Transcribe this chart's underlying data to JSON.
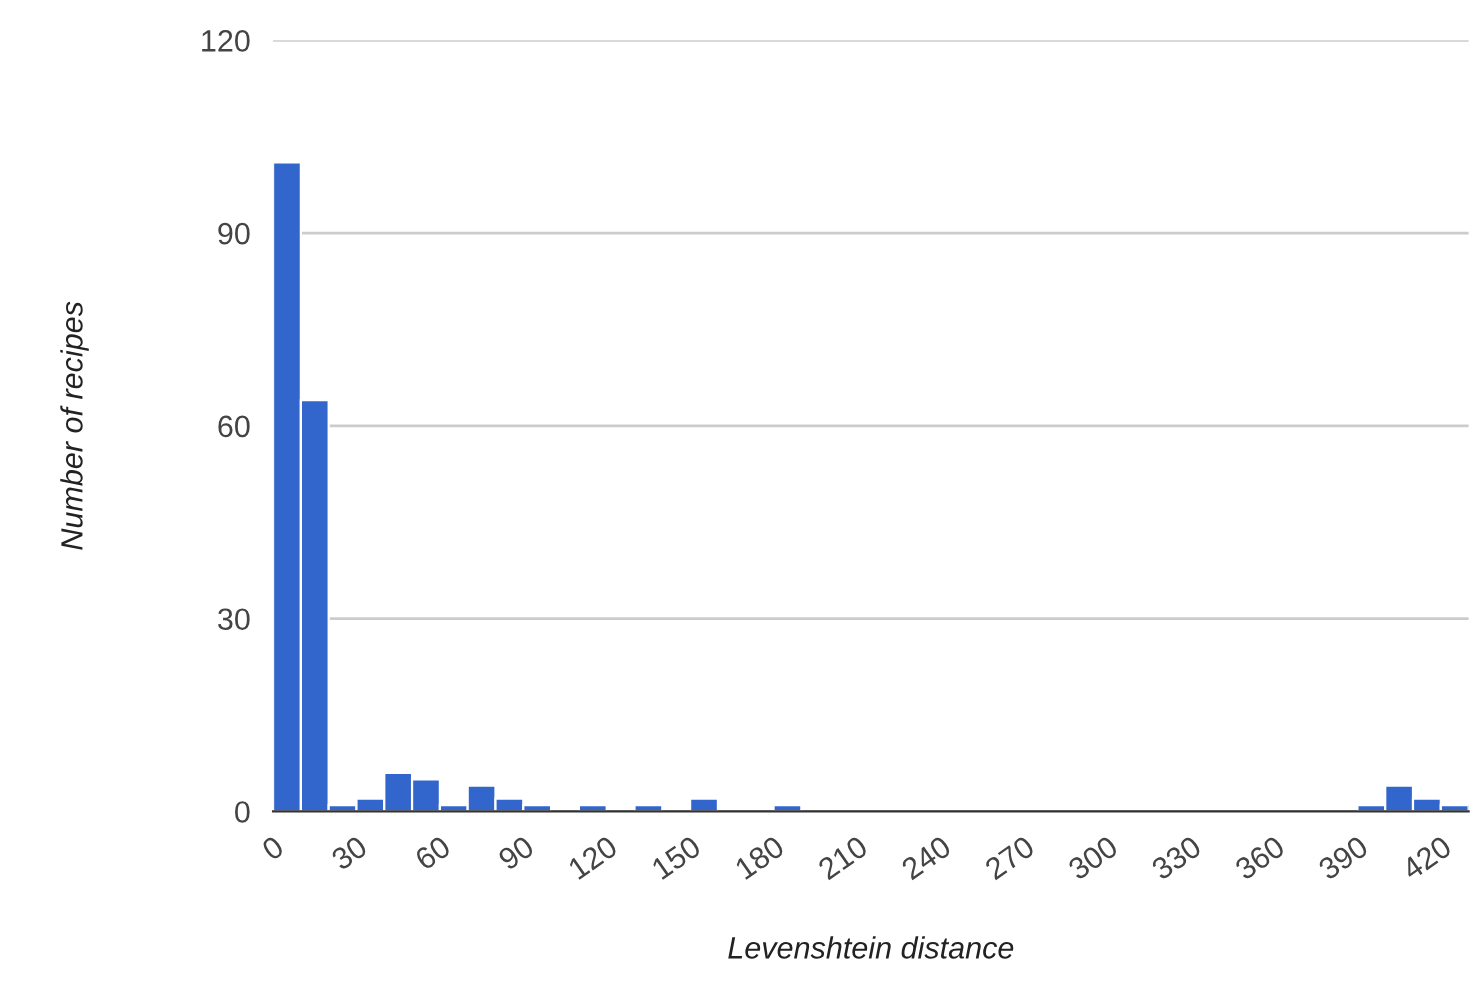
{
  "chart_data": {
    "type": "histogram",
    "xlabel": "Levenshtein distance",
    "ylabel": "Number of recipes",
    "color": "#3366cc",
    "bins": [
      0,
      10,
      20,
      30,
      40,
      50,
      60,
      70,
      80,
      90,
      100,
      110,
      120,
      130,
      140,
      150,
      160,
      170,
      180,
      190,
      200,
      210,
      220,
      230,
      240,
      250,
      260,
      270,
      280,
      290,
      300,
      310,
      320,
      330,
      340,
      350,
      360,
      370,
      380,
      390,
      400,
      410,
      420,
      430
    ],
    "values": [
      101,
      64,
      1,
      2,
      6,
      5,
      1,
      4,
      2,
      1,
      0,
      1,
      0,
      1,
      0,
      2,
      0,
      0,
      1,
      0,
      0,
      0,
      0,
      0,
      0,
      0,
      0,
      0,
      0,
      0,
      0,
      0,
      0,
      0,
      0,
      0,
      0,
      0,
      0,
      1,
      4,
      2,
      1
    ],
    "xlim": [
      0,
      430
    ],
    "xticks": [
      0,
      30,
      60,
      90,
      120,
      150,
      180,
      210,
      240,
      270,
      300,
      330,
      360,
      390,
      420
    ],
    "ylim": [
      0,
      120
    ],
    "yticks": [
      0,
      30,
      60,
      90,
      120
    ],
    "grid": "y"
  }
}
